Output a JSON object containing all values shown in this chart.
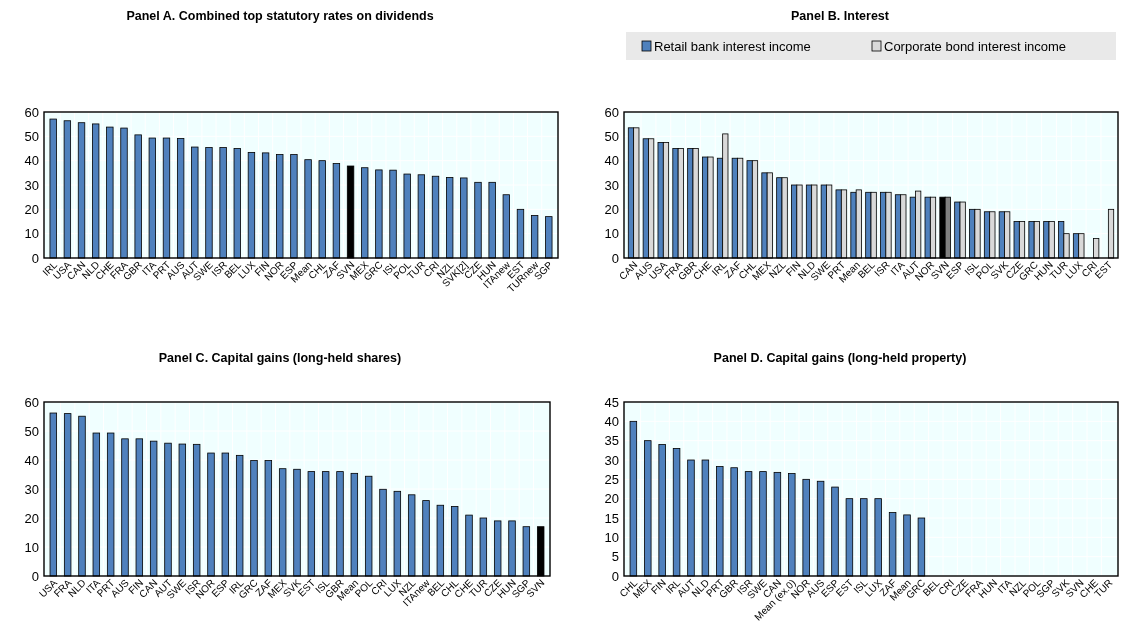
{
  "chart_data": [
    {
      "type": "bar",
      "title": "Panel A. Combined top statutory rates on dividends",
      "categories": [
        "IRL",
        "USA",
        "CAN",
        "NLD",
        "CHE",
        "FRA",
        "GBR",
        "ITA",
        "PRT",
        "AUS",
        "AUT",
        "SWE",
        "ISR",
        "BEL",
        "LUX",
        "FIN",
        "NOR",
        "ESP",
        "Mean",
        "CHL",
        "ZAF",
        "SVN",
        "MEX",
        "GRC",
        "ISL",
        "POL",
        "TUR",
        "CRI",
        "NZL",
        "SVK[2]",
        "CZE",
        "HUN",
        "ITAnew",
        "EST",
        "TURnew",
        "SGP"
      ],
      "series": [
        {
          "values": [
            57.1,
            56.4,
            55.6,
            55.1,
            53.8,
            53.4,
            50.6,
            49.3,
            49.3,
            49.1,
            45.6,
            45.4,
            45.4,
            45,
            43.4,
            43.2,
            42.5,
            42.5,
            40.4,
            40,
            38.8,
            37.8,
            37.1,
            36.2,
            36.1,
            34.5,
            34.2,
            33.6,
            33.1,
            32.9,
            31.1,
            31.1,
            26,
            20,
            17.5,
            17
          ],
          "colors": [
            "#4f81bd",
            "#4f81bd",
            "#4f81bd",
            "#4f81bd",
            "#4f81bd",
            "#4f81bd",
            "#4f81bd",
            "#4f81bd",
            "#4f81bd",
            "#4f81bd",
            "#4f81bd",
            "#4f81bd",
            "#4f81bd",
            "#4f81bd",
            "#4f81bd",
            "#4f81bd",
            "#4f81bd",
            "#4f81bd",
            "#4f81bd",
            "#4f81bd",
            "#4f81bd",
            "#000000",
            "#4f81bd",
            "#4f81bd",
            "#4f81bd",
            "#4f81bd",
            "#4f81bd",
            "#4f81bd",
            "#4f81bd",
            "#4f81bd",
            "#4f81bd",
            "#4f81bd",
            "#4f81bd",
            "#4f81bd",
            "#4f81bd",
            "#4f81bd"
          ]
        }
      ],
      "ylim": [
        0,
        60
      ],
      "yticks": [
        0,
        10,
        20,
        30,
        40,
        50,
        60
      ],
      "grid": true,
      "legend": false
    },
    {
      "type": "bar",
      "title": "Panel B. Interest",
      "categories": [
        "CAN",
        "AUS",
        "USA",
        "FRA",
        "GBR",
        "CHE",
        "IRL",
        "ZAF",
        "CHL",
        "MEX",
        "NZL",
        "FIN",
        "NLD",
        "SWE",
        "PRT",
        "Mean",
        "BEL",
        "ISR",
        "ITA",
        "AUT",
        "NOR",
        "SVN",
        "ESP",
        "ISL",
        "POL",
        "SVK",
        "CZE",
        "GRC",
        "HUN",
        "TUR",
        "LUX",
        "CRI",
        "EST"
      ],
      "series": [
        {
          "name": "Retail bank interest income",
          "color": "#4f81bd",
          "values": [
            53.5,
            49,
            47.5,
            45,
            45,
            41.5,
            41,
            41,
            40,
            35,
            33,
            30,
            30,
            30,
            28,
            27,
            27,
            27,
            26,
            25,
            25,
            25,
            23,
            20,
            19,
            19,
            15,
            15,
            15,
            15,
            10,
            0,
            0
          ],
          "colors": [
            "#4f81bd",
            "#4f81bd",
            "#4f81bd",
            "#4f81bd",
            "#4f81bd",
            "#4f81bd",
            "#4f81bd",
            "#4f81bd",
            "#4f81bd",
            "#4f81bd",
            "#4f81bd",
            "#4f81bd",
            "#4f81bd",
            "#4f81bd",
            "#4f81bd",
            "#4f81bd",
            "#4f81bd",
            "#4f81bd",
            "#4f81bd",
            "#4f81bd",
            "#4f81bd",
            "#000000",
            "#4f81bd",
            "#4f81bd",
            "#4f81bd",
            "#4f81bd",
            "#4f81bd",
            "#4f81bd",
            "#4f81bd",
            "#4f81bd",
            "#4f81bd",
            "#4f81bd",
            "#4f81bd"
          ]
        },
        {
          "name": "Corporate bond interest income",
          "color": "#d9d9d9",
          "values": [
            53.5,
            49,
            47.5,
            45,
            45,
            41.5,
            51,
            41,
            40,
            35,
            33,
            30,
            30,
            30,
            28,
            28,
            27,
            27,
            26,
            27.5,
            25,
            25,
            23,
            20,
            19,
            19,
            15,
            15,
            15,
            10,
            10,
            8,
            20
          ],
          "colors": [
            "#d9d9d9",
            "#d9d9d9",
            "#d9d9d9",
            "#d9d9d9",
            "#d9d9d9",
            "#d9d9d9",
            "#d9d9d9",
            "#d9d9d9",
            "#d9d9d9",
            "#d9d9d9",
            "#d9d9d9",
            "#d9d9d9",
            "#d9d9d9",
            "#d9d9d9",
            "#d9d9d9",
            "#d9d9d9",
            "#d9d9d9",
            "#d9d9d9",
            "#d9d9d9",
            "#d9d9d9",
            "#d9d9d9",
            "#808080",
            "#d9d9d9",
            "#d9d9d9",
            "#d9d9d9",
            "#d9d9d9",
            "#d9d9d9",
            "#d9d9d9",
            "#d9d9d9",
            "#d9d9d9",
            "#d9d9d9",
            "#d9d9d9",
            "#d9d9d9"
          ]
        }
      ],
      "ylim": [
        0,
        60
      ],
      "yticks": [
        0,
        10,
        20,
        30,
        40,
        50,
        60
      ],
      "grid": true,
      "legend": "top"
    },
    {
      "type": "bar",
      "title": "Panel C. Capital gains (long-held shares)",
      "categories": [
        "USA",
        "FRA",
        "NLD",
        "ITA",
        "PRT",
        "AUS",
        "FIN",
        "CAN",
        "AUT",
        "SWE",
        "ISR",
        "NOR",
        "ESP",
        "IRL",
        "GRC",
        "ZAF",
        "MEX",
        "SVK",
        "EST",
        "ISL",
        "GBR",
        "Mean",
        "POL",
        "CRI",
        "LUX",
        "NZL",
        "ITAnew",
        "BEL",
        "CHL",
        "CHE",
        "TUR",
        "CZE",
        "HUN",
        "SGP",
        "SVN"
      ],
      "series": [
        {
          "values": [
            56.2,
            56,
            55.1,
            49.3,
            49.3,
            47.3,
            47.3,
            46.5,
            45.8,
            45.5,
            45.4,
            42.4,
            42.4,
            41.6,
            39.8,
            39.8,
            37,
            36.8,
            36,
            36,
            36,
            35.4,
            34.4,
            29.9,
            29.2,
            28,
            26,
            24.4,
            24,
            21,
            20,
            19,
            19,
            17,
            17
          ],
          "colors": [
            "#4f81bd",
            "#4f81bd",
            "#4f81bd",
            "#4f81bd",
            "#4f81bd",
            "#4f81bd",
            "#4f81bd",
            "#4f81bd",
            "#4f81bd",
            "#4f81bd",
            "#4f81bd",
            "#4f81bd",
            "#4f81bd",
            "#4f81bd",
            "#4f81bd",
            "#4f81bd",
            "#4f81bd",
            "#4f81bd",
            "#4f81bd",
            "#4f81bd",
            "#4f81bd",
            "#4f81bd",
            "#4f81bd",
            "#4f81bd",
            "#4f81bd",
            "#4f81bd",
            "#4f81bd",
            "#4f81bd",
            "#4f81bd",
            "#4f81bd",
            "#4f81bd",
            "#4f81bd",
            "#4f81bd",
            "#4f81bd",
            "#000000"
          ]
        }
      ],
      "ylim": [
        0,
        60
      ],
      "yticks": [
        0,
        10,
        20,
        30,
        40,
        50,
        60
      ],
      "grid": true,
      "legend": false
    },
    {
      "type": "bar",
      "title": "Panel D. Capital gains (long-held property)",
      "categories": [
        "CHL",
        "MEX",
        "FIN",
        "IRL",
        "AUT",
        "NLD",
        "PRT",
        "GBR",
        "ISR",
        "SWE",
        "CAN",
        "Mean (ex.0)",
        "NOR",
        "AUS",
        "ESP",
        "EST",
        "ISL",
        "LUX",
        "ZAF",
        "Mean",
        "GRC",
        "BEL",
        "CRI",
        "CZE",
        "FRA",
        "HUN",
        "ITA",
        "NZL",
        "POL",
        "SGP",
        "SVK",
        "SVN",
        "CHE",
        "TUR"
      ],
      "series": [
        {
          "values": [
            40,
            35,
            34,
            33,
            30,
            30,
            28.3,
            28,
            27,
            27,
            26.8,
            26.5,
            25,
            24.5,
            23,
            20,
            20,
            20,
            16.4,
            15.8,
            15,
            0,
            0,
            0,
            0,
            0,
            0,
            0,
            0,
            0,
            0,
            0,
            0,
            0
          ],
          "colors": [
            "#4f81bd",
            "#4f81bd",
            "#4f81bd",
            "#4f81bd",
            "#4f81bd",
            "#4f81bd",
            "#4f81bd",
            "#4f81bd",
            "#4f81bd",
            "#4f81bd",
            "#4f81bd",
            "#4f81bd",
            "#4f81bd",
            "#4f81bd",
            "#4f81bd",
            "#4f81bd",
            "#4f81bd",
            "#4f81bd",
            "#4f81bd",
            "#4f81bd",
            "#4f81bd",
            "#4f81bd",
            "#4f81bd",
            "#4f81bd",
            "#4f81bd",
            "#4f81bd",
            "#4f81bd",
            "#4f81bd",
            "#4f81bd",
            "#4f81bd",
            "#4f81bd",
            "#4f81bd",
            "#4f81bd",
            "#4f81bd"
          ]
        }
      ],
      "ylim": [
        0,
        45
      ],
      "yticks": [
        0,
        5,
        10,
        15,
        20,
        25,
        30,
        35,
        40,
        45
      ],
      "grid": true,
      "legend": false
    }
  ]
}
